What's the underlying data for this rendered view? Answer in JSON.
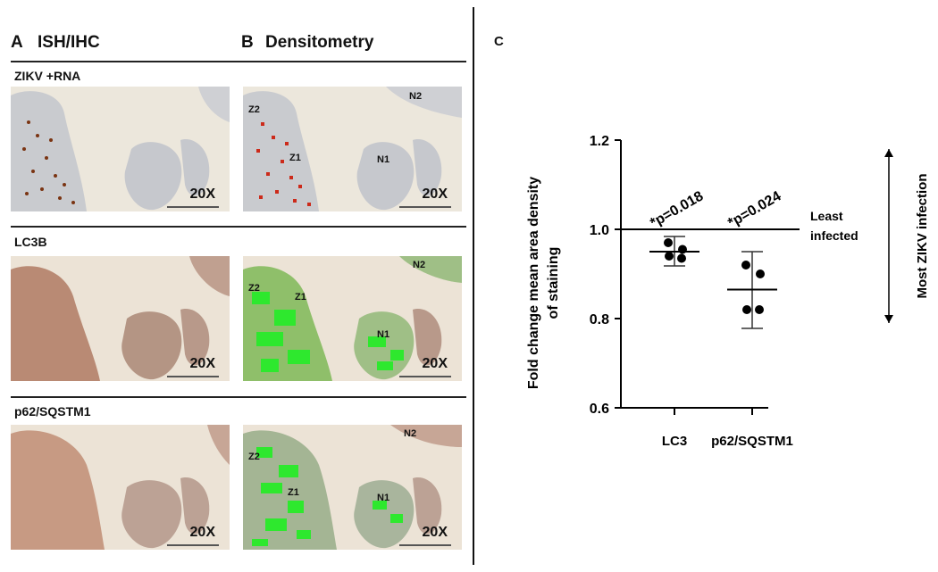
{
  "panels": {
    "A": {
      "letter": "A",
      "title": "ISH/IHC"
    },
    "B": {
      "letter": "B",
      "title": "Densitometry"
    },
    "C": {
      "letter": "C"
    }
  },
  "rows": [
    {
      "label": "ZIKV +RNA",
      "magnification": "20X"
    },
    {
      "label": "LC3B",
      "magnification": "20X"
    },
    {
      "label": "p62/SQSTM1",
      "magnification": "20X"
    }
  ],
  "regions": {
    "z1": "Z1",
    "z2": "Z2",
    "n1": "N1",
    "n2": "N2"
  },
  "chart_data": {
    "type": "scatter",
    "ylabel": "Fold change mean area density of staining",
    "ylim": [
      0.6,
      1.2
    ],
    "yticks": [
      "0.6",
      "0.8",
      "1.0",
      "1.2"
    ],
    "categories": [
      "LC3",
      "p62/SQSTM1"
    ],
    "series": [
      {
        "category": "LC3",
        "points": [
          0.97,
          0.955,
          0.94,
          0.935
        ],
        "mean": 0.95,
        "err_low": 0.918,
        "err_high": 0.984,
        "annotation": "*p=0.018"
      },
      {
        "category": "p62/SQSTM1",
        "points": [
          0.92,
          0.9,
          0.82,
          0.82
        ],
        "mean": 0.865,
        "err_low": 0.778,
        "err_high": 0.95,
        "annotation": "*p=0.024"
      }
    ],
    "reference_line": {
      "y": 1.0,
      "label_line1": "Least",
      "label_line2": "infected"
    },
    "side_arrow_label": "Most ZIKV infection",
    "colors": {
      "points": "#000000",
      "tissue_brown": "#8b4a2a",
      "dens_red": "#cc2a1a",
      "dens_green": "#2ee82e",
      "background": "#ece7dc"
    }
  }
}
